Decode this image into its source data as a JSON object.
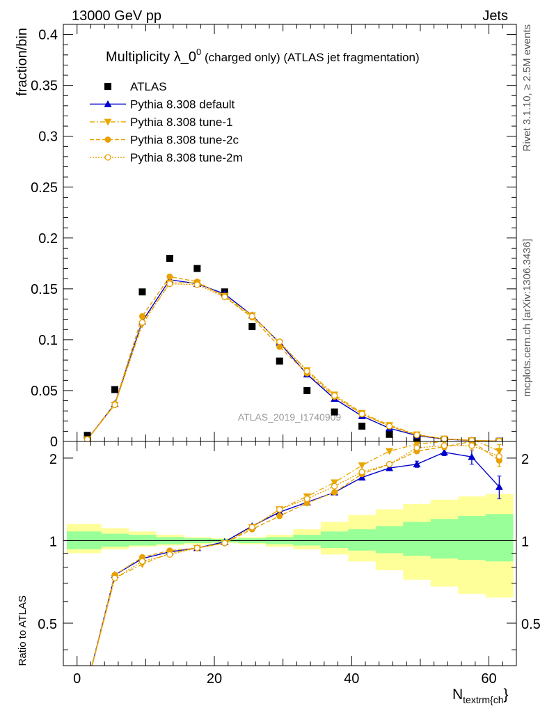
{
  "header": {
    "left": "13000 GeV pp",
    "right": "Jets"
  },
  "side_labels": {
    "rivet": "Rivet 3.1.10, ≥ 2.5M events",
    "mcplots": "mcplots.cern.ch [arXiv:1306.3436]"
  },
  "watermark": "ATLAS_2019_I1740909",
  "chart_data": [
    {
      "type": "scatter",
      "panel": "main",
      "title": "Multiplicity λ_0⁰ (charged only) (ATLAS jet fragmentation)",
      "title_main": "Multiplicity λ_0",
      "title_sup": "0",
      "title_rest": " (charged only) (ATLAS jet fragmentation)",
      "ylabel": "fraction/bin",
      "xlim": [
        -2,
        64
      ],
      "ylim": [
        0,
        0.41
      ],
      "yticks": [
        0,
        0.05,
        0.1,
        0.15,
        0.2,
        0.25,
        0.3,
        0.35,
        0.4
      ],
      "ytick_labels": [
        "0",
        "0.05",
        "0.1",
        "0.15",
        "0.2",
        "0.25",
        "0.3",
        "0.35",
        "0.4"
      ],
      "x": [
        1.5,
        5.5,
        9.5,
        13.5,
        17.5,
        21.5,
        25.5,
        29.5,
        33.5,
        37.5,
        41.5,
        45.5,
        49.5,
        53.5,
        57.5,
        61.5
      ],
      "legend_position": "top-left",
      "series": [
        {
          "name": "ATLAS",
          "marker": "square",
          "color": "#000000",
          "values": [
            0.006,
            0.051,
            0.147,
            0.18,
            0.17,
            0.147,
            0.113,
            0.079,
            0.05,
            0.029,
            0.015,
            0.007,
            0.003,
            0.001,
            0.0005,
            0.0002
          ]
        },
        {
          "name": "Pythia 8.308 default",
          "marker": "triangle-up",
          "color": "#0000cc",
          "line": "solid",
          "values": [
            0.002,
            0.037,
            0.118,
            0.159,
            0.155,
            0.145,
            0.124,
            0.097,
            0.066,
            0.042,
            0.025,
            0.013,
            0.0058,
            0.0023,
            0.0009,
            0.0003
          ]
        },
        {
          "name": "Pythia 8.308 tune-1",
          "marker": "triangle-down",
          "color": "#e8a800",
          "line": "dashdot",
          "values": [
            0.002,
            0.036,
            0.115,
            0.156,
            0.156,
            0.143,
            0.124,
            0.097,
            0.07,
            0.046,
            0.028,
            0.016,
            0.0068,
            0.0027,
            0.001,
            0.0004
          ]
        },
        {
          "name": "Pythia 8.308 tune-2c",
          "marker": "circle",
          "color": "#e8a000",
          "line": "dashed",
          "values": [
            0.002,
            0.037,
            0.123,
            0.162,
            0.157,
            0.142,
            0.122,
            0.093,
            0.067,
            0.044,
            0.027,
            0.015,
            0.0065,
            0.0025,
            0.001,
            0.0004
          ]
        },
        {
          "name": "Pythia 8.308 tune-2m",
          "marker": "circle-open",
          "color": "#e8a000",
          "line": "dotted",
          "values": [
            0.002,
            0.036,
            0.117,
            0.155,
            0.154,
            0.142,
            0.123,
            0.098,
            0.069,
            0.045,
            0.027,
            0.015,
            0.0064,
            0.0025,
            0.001,
            0.0004
          ]
        }
      ]
    },
    {
      "type": "line",
      "panel": "ratio",
      "ylabel": "Ratio to ATLAS",
      "xlabel": "N",
      "xlabel_sub": "textrm{ch",
      "xlabel_tail": "}",
      "xlim": [
        -2,
        64
      ],
      "ylim": [
        0.35,
        2.3
      ],
      "log_scale_y": true,
      "yticks": [
        0.5,
        1,
        2
      ],
      "ytick_labels": [
        "0.5",
        "1",
        "2"
      ],
      "xticks": [
        0,
        20,
        40,
        60
      ],
      "xtick_labels": [
        "0",
        "20",
        "40",
        "60"
      ],
      "band_edges": [
        -1.5,
        3.5,
        7.5,
        11.5,
        15.5,
        19.5,
        23.5,
        27.5,
        31.5,
        35.5,
        39.5,
        43.5,
        47.5,
        51.5,
        55.5,
        59.5,
        63.5
      ],
      "band_inner_green": [
        [
          0.93,
          1.08
        ],
        [
          0.95,
          1.06
        ],
        [
          0.96,
          1.05
        ],
        [
          0.97,
          1.03
        ],
        [
          0.98,
          1.02
        ],
        [
          0.985,
          1.015
        ],
        [
          0.98,
          1.02
        ],
        [
          0.97,
          1.03
        ],
        [
          0.96,
          1.05
        ],
        [
          0.94,
          1.08
        ],
        [
          0.92,
          1.1
        ],
        [
          0.9,
          1.13
        ],
        [
          0.88,
          1.17
        ],
        [
          0.86,
          1.2
        ],
        [
          0.85,
          1.23
        ],
        [
          0.84,
          1.25
        ]
      ],
      "band_outer_yellow": [
        [
          0.9,
          1.15
        ],
        [
          0.93,
          1.11
        ],
        [
          0.95,
          1.08
        ],
        [
          0.96,
          1.05
        ],
        [
          0.97,
          1.03
        ],
        [
          0.98,
          1.02
        ],
        [
          0.97,
          1.03
        ],
        [
          0.95,
          1.05
        ],
        [
          0.93,
          1.1
        ],
        [
          0.89,
          1.17
        ],
        [
          0.84,
          1.24
        ],
        [
          0.78,
          1.3
        ],
        [
          0.72,
          1.36
        ],
        [
          0.68,
          1.41
        ],
        [
          0.64,
          1.45
        ],
        [
          0.62,
          1.48
        ]
      ],
      "x": [
        1.5,
        5.5,
        9.5,
        13.5,
        17.5,
        21.5,
        25.5,
        29.5,
        33.5,
        37.5,
        41.5,
        45.5,
        49.5,
        53.5,
        57.5,
        61.5
      ],
      "series": [
        {
          "name": "Pythia 8.308 default",
          "color": "#0000cc",
          "marker": "triangle-up",
          "line": "solid",
          "values": [
            0.3,
            0.75,
            0.86,
            0.91,
            0.94,
            0.99,
            1.13,
            1.27,
            1.38,
            1.5,
            1.7,
            1.84,
            1.9,
            2.1,
            2.02,
            1.57
          ],
          "errors": [
            0,
            0,
            0,
            0,
            0,
            0,
            0,
            0,
            0,
            0,
            0,
            0.02,
            0.05,
            0.06,
            0.12,
            0.15
          ]
        },
        {
          "name": "Pythia 8.308 tune-1",
          "color": "#e8a800",
          "marker": "triangle-down",
          "line": "dashdot",
          "values": [
            0.3,
            0.73,
            0.82,
            0.9,
            0.94,
            0.98,
            1.12,
            1.3,
            1.45,
            1.63,
            1.88,
            2.12,
            2.25,
            2.3,
            2.35,
            2.12
          ],
          "errors": [
            0,
            0,
            0,
            0,
            0,
            0,
            0,
            0,
            0,
            0,
            0,
            0.02,
            0.03,
            0.05,
            0.08,
            0.12
          ]
        },
        {
          "name": "Pythia 8.308 tune-2c",
          "color": "#e8a000",
          "marker": "circle",
          "line": "dashed",
          "values": [
            0.3,
            0.75,
            0.87,
            0.92,
            0.94,
            0.98,
            1.1,
            1.23,
            1.37,
            1.5,
            1.75,
            1.9,
            2.12,
            2.2,
            2.3,
            1.96
          ],
          "errors": [
            0,
            0,
            0,
            0,
            0,
            0,
            0,
            0,
            0,
            0,
            0,
            0.02,
            0.04,
            0.05,
            0.08,
            0.1
          ]
        },
        {
          "name": "Pythia 8.308 tune-2m",
          "color": "#e8a000",
          "marker": "circle-open",
          "line": "dotted",
          "values": [
            0.3,
            0.73,
            0.84,
            0.89,
            0.94,
            0.98,
            1.12,
            1.3,
            1.42,
            1.58,
            1.78,
            1.9,
            2.18,
            2.22,
            2.22,
            2.03
          ],
          "errors": [
            0,
            0,
            0,
            0,
            0,
            0,
            0,
            0,
            0,
            0,
            0,
            0.02,
            0.04,
            0.05,
            0.08,
            0.1
          ]
        }
      ]
    }
  ]
}
